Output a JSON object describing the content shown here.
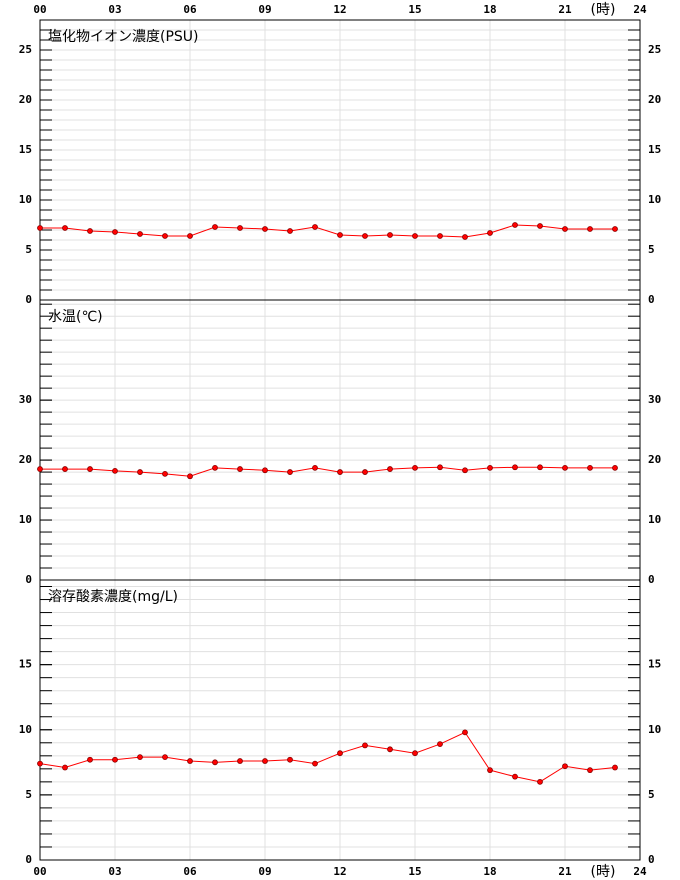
{
  "chart_data": [
    {
      "type": "line",
      "title": "塩化物イオン濃度(PSU)",
      "x_label": "(時)",
      "x": [
        0,
        1,
        2,
        3,
        4,
        5,
        6,
        7,
        8,
        9,
        10,
        11,
        12,
        13,
        14,
        15,
        16,
        17,
        18,
        19,
        20,
        21,
        22,
        23
      ],
      "series": [
        {
          "color": "#ff0000",
          "values": [
            7.2,
            7.2,
            6.9,
            6.8,
            6.6,
            6.4,
            6.4,
            7.3,
            7.2,
            7.1,
            6.9,
            7.3,
            6.5,
            6.4,
            6.5,
            6.4,
            6.4,
            6.3,
            6.7,
            7.5,
            7.4,
            7.1,
            7.1,
            7.1
          ]
        }
      ],
      "xlim": [
        0,
        24
      ],
      "xticks": [
        {
          "value": 0,
          "label": "00"
        },
        {
          "value": 3,
          "label": "03"
        },
        {
          "value": 6,
          "label": "06"
        },
        {
          "value": 9,
          "label": "09"
        },
        12,
        15,
        18,
        21,
        24
      ],
      "ylim": [
        0,
        28
      ],
      "yticks": [
        0,
        5,
        10,
        15,
        20,
        25
      ],
      "yminor": 1,
      "grid": true
    },
    {
      "type": "line",
      "title": "水温(℃)",
      "x": [
        0,
        1,
        2,
        3,
        4,
        5,
        6,
        7,
        8,
        9,
        10,
        11,
        12,
        13,
        14,
        15,
        16,
        17,
        18,
        19,
        20,
        21,
        22,
        23
      ],
      "series": [
        {
          "color": "#ff0000",
          "values": [
            18.5,
            18.5,
            18.5,
            18.2,
            18.0,
            17.7,
            17.3,
            18.7,
            18.5,
            18.3,
            18.0,
            18.7,
            18.0,
            18.0,
            18.5,
            18.7,
            18.8,
            18.3,
            18.7,
            18.8,
            18.8,
            18.7,
            18.7,
            18.7
          ]
        }
      ],
      "xlim": [
        0,
        24
      ],
      "xticks": [
        0,
        3,
        6,
        9,
        12,
        15,
        18,
        21,
        24
      ],
      "ylim": [
        0,
        46.7
      ],
      "yticks": [
        0,
        10,
        20,
        30
      ],
      "yminor": 2,
      "grid": true
    },
    {
      "type": "line",
      "title": "溶存酸素濃度(mg/L)",
      "x_label": "(時)",
      "x": [
        0,
        1,
        2,
        3,
        4,
        5,
        6,
        7,
        8,
        9,
        10,
        11,
        12,
        13,
        14,
        15,
        16,
        17,
        18,
        19,
        20,
        21,
        22,
        23
      ],
      "series": [
        {
          "color": "#ff0000",
          "values": [
            7.4,
            7.1,
            7.7,
            7.7,
            7.9,
            7.9,
            7.6,
            7.5,
            7.6,
            7.6,
            7.7,
            7.4,
            8.2,
            8.8,
            8.5,
            8.2,
            8.9,
            9.8,
            6.9,
            6.4,
            6.0,
            7.2,
            6.9,
            7.1
          ]
        }
      ],
      "xlim": [
        0,
        24
      ],
      "xticks": [
        {
          "value": 0,
          "label": "00"
        },
        {
          "value": 3,
          "label": "03"
        },
        {
          "value": 6,
          "label": "06"
        },
        {
          "value": 9,
          "label": "09"
        },
        12,
        15,
        18,
        21,
        24
      ],
      "ylim": [
        0,
        21.5
      ],
      "yticks": [
        0,
        5,
        10,
        15
      ],
      "yminor": 1,
      "grid": true
    }
  ]
}
